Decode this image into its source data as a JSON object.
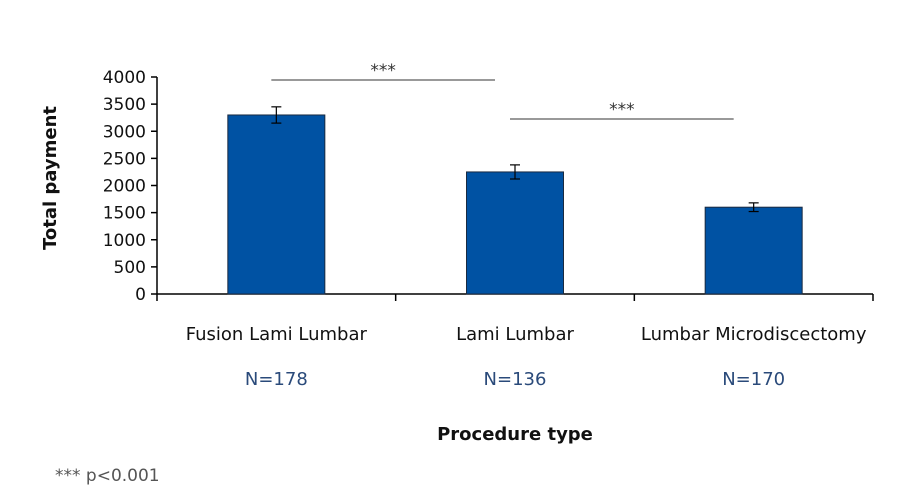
{
  "chart_data": {
    "type": "bar",
    "categories": [
      "Fusion Lami Lumbar",
      "Lami Lumbar",
      "Lumbar Microdiscectomy"
    ],
    "sample_sizes": [
      "N=178",
      "N=136",
      "N=170"
    ],
    "values": [
      3300,
      2250,
      1600
    ],
    "error_bars": [
      150,
      130,
      80
    ],
    "ylabel": "Total payment",
    "xlabel": "Procedure type",
    "ylim": [
      0,
      4000
    ],
    "yticks": [
      0,
      500,
      1000,
      1500,
      2000,
      2500,
      3000,
      3500,
      4000
    ],
    "grid": false,
    "bar_color": "#0052a3",
    "significance": [
      {
        "from": 0,
        "to": 1,
        "label": "***"
      },
      {
        "from": 1,
        "to": 2,
        "label": "***"
      }
    ],
    "footnote": "*** p<0.001"
  }
}
